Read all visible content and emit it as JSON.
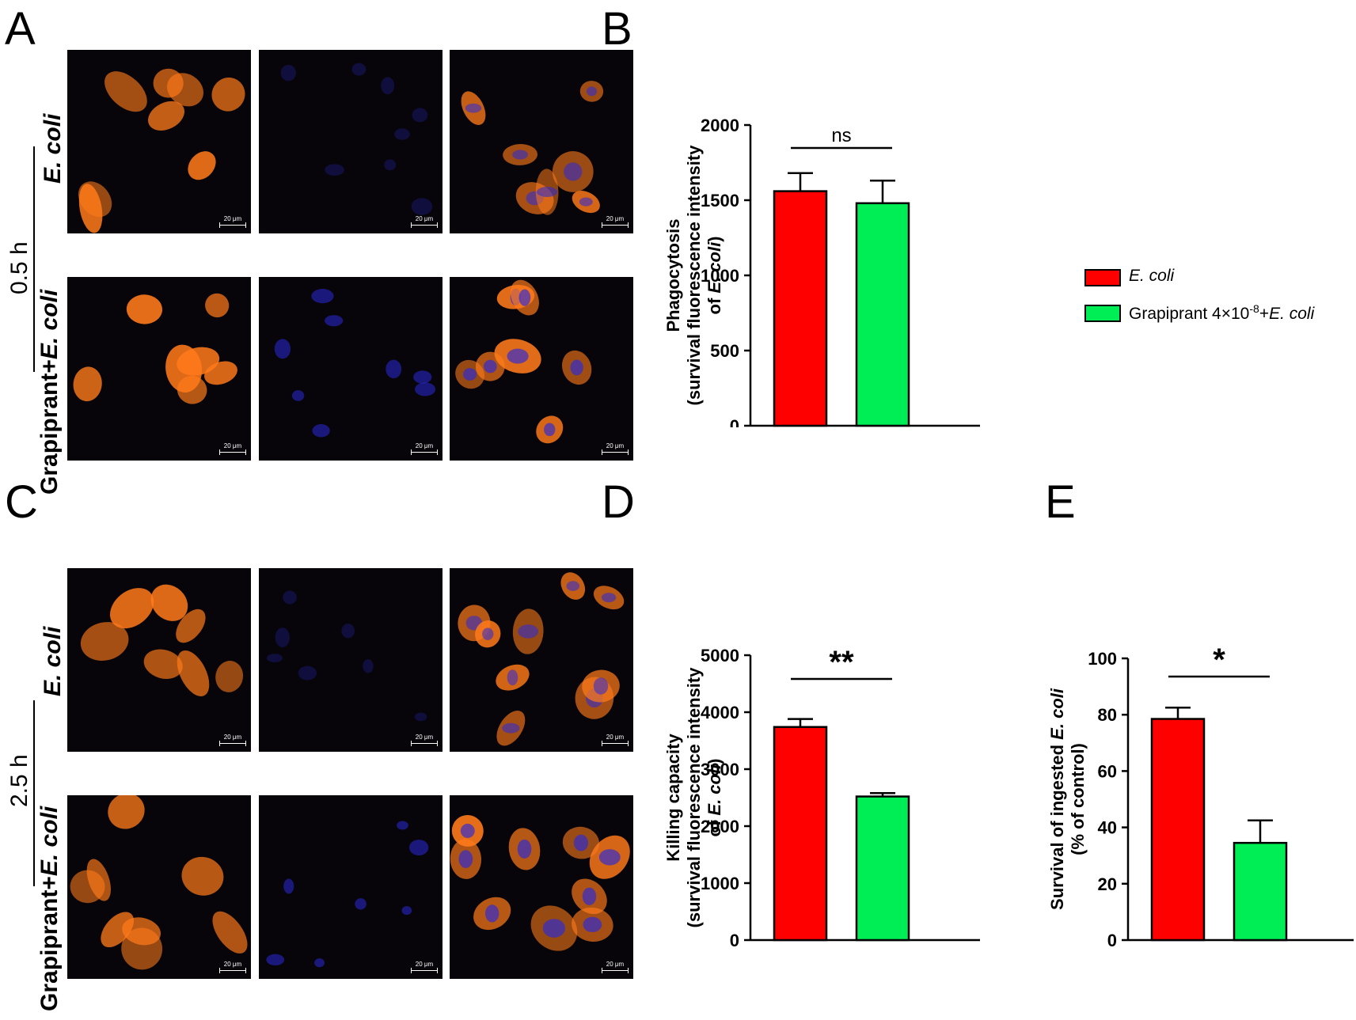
{
  "panel_letters": {
    "a": "A",
    "b": "B",
    "c": "C",
    "d": "D",
    "e": "E"
  },
  "micrographs": {
    "scale_bar": "20 μm",
    "row_labels": {
      "ecoli": "E. coli",
      "grapiprant_prefix": "Grapiprant+",
      "grapiprant_ecoli": "E. coli"
    },
    "time_labels": {
      "t1": "0.5 h",
      "t2": "2.5 h"
    },
    "channel_colors": {
      "actin": "#ff7a1a",
      "nuclei": "#2a2ad8",
      "background": "#07050a"
    }
  },
  "legend": {
    "items": [
      {
        "label": "E. coli",
        "color": "#ff0000"
      },
      {
        "label_prefix": "Grapiprant 4×10",
        "label_sup": "-8",
        "label_plus": "+",
        "label_italic": "E. coli",
        "color": "#00ee55"
      }
    ]
  },
  "chart_data": [
    {
      "panel": "B",
      "type": "bar",
      "categories": [
        "E. coli",
        "Grapiprant 4×10-8+E. coli"
      ],
      "values": [
        1560,
        1480
      ],
      "errors": [
        120,
        150
      ],
      "colors": [
        "#ff0000",
        "#00ee55"
      ],
      "ylim": [
        0,
        2000
      ],
      "yticks": [
        "0",
        "500",
        "1000",
        "1500",
        "2000"
      ],
      "ylabel_line1": "Phagocytosis",
      "ylabel_line2": "(survival fluorescence intensity",
      "ylabel_line3_prefix": "of ",
      "ylabel_line3_italic": "E. coli",
      "ylabel_line3_suffix": ")",
      "significance": "ns"
    },
    {
      "panel": "D",
      "type": "bar",
      "categories": [
        "E. coli",
        "Grapiprant 4×10-8+E. coli"
      ],
      "values": [
        3740,
        2520
      ],
      "errors": [
        140,
        60
      ],
      "colors": [
        "#ff0000",
        "#00ee55"
      ],
      "ylim": [
        0,
        5000
      ],
      "yticks": [
        "0",
        "1000",
        "2000",
        "3000",
        "4000",
        "5000"
      ],
      "ylabel_line1": "Killing capacity",
      "ylabel_line2": "(survival fluorescence intensity",
      "ylabel_line3_prefix": "of ",
      "ylabel_line3_italic": "E. coli",
      "ylabel_line3_suffix": ")",
      "significance": "**"
    },
    {
      "panel": "E",
      "type": "bar",
      "categories": [
        "E. coli",
        "Grapiprant 4×10-8+E. coli"
      ],
      "values": [
        78.5,
        34.5
      ],
      "errors": [
        4,
        8
      ],
      "colors": [
        "#ff0000",
        "#00ee55"
      ],
      "ylim": [
        0,
        100
      ],
      "yticks": [
        "0",
        "20",
        "40",
        "60",
        "80",
        "100"
      ],
      "ylabel_line1_prefix": "Survival of ingested ",
      "ylabel_line1_italic": "E. coli",
      "ylabel_line2": "(% of control)",
      "significance": "*"
    }
  ]
}
